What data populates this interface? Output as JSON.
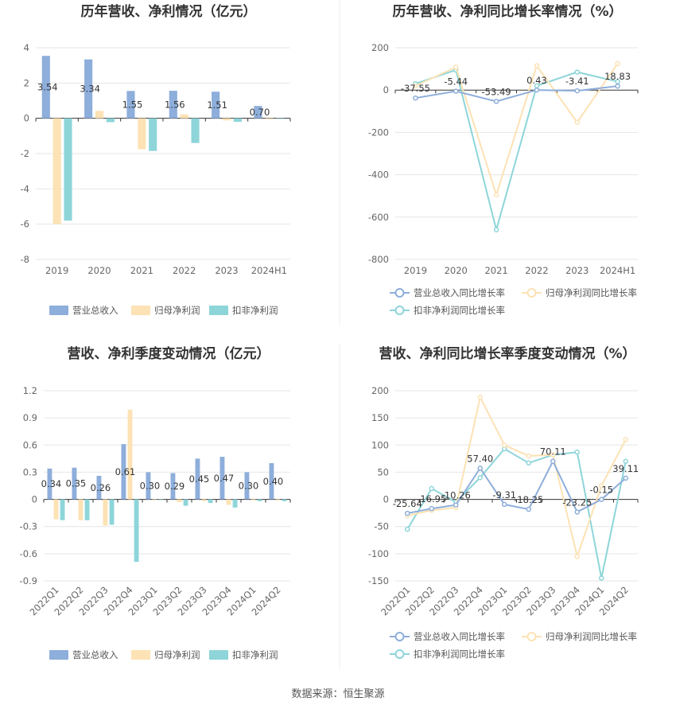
{
  "source": "数据来源：恒生聚源",
  "colors": {
    "revenue": "#8eaedb",
    "net_profit": "#fce2b4",
    "deducted_profit": "#8dd5d9",
    "revenue_line": "#8eaedb",
    "net_profit_line": "#fce2b4",
    "deducted_profit_line": "#8dd5d9",
    "grid": "#e6e6e6",
    "axis": "#333333"
  },
  "chart_data": [
    {
      "id": "annual_amount",
      "type": "bar",
      "title": "历年营收、净利情况（亿元）",
      "categories": [
        "2019",
        "2020",
        "2021",
        "2022",
        "2023",
        "2024H1"
      ],
      "ylim": [
        -8,
        4
      ],
      "yticks": [
        4,
        2,
        0,
        -2,
        -4,
        -6,
        -8
      ],
      "ytick_labels": [
        "4",
        "2",
        "0",
        "-2",
        "-4",
        "-6",
        "-8"
      ],
      "grid": true,
      "legend_position": "bottom",
      "series": [
        {
          "name": "营业总收入",
          "values": [
            3.54,
            3.34,
            1.55,
            1.56,
            1.51,
            0.7
          ],
          "labels": [
            "3.54",
            "3.34",
            "1.55",
            "1.56",
            "1.51",
            "0.70"
          ]
        },
        {
          "name": "归母净利润",
          "values": [
            -6.0,
            0.42,
            -1.75,
            0.22,
            -0.12,
            -0.05
          ]
        },
        {
          "name": "扣非净利润",
          "values": [
            -5.8,
            -0.22,
            -1.85,
            -1.4,
            -0.2,
            -0.03
          ]
        }
      ]
    },
    {
      "id": "annual_growth",
      "type": "line",
      "title": "历年营收、净利同比增长率情况（%）",
      "categories": [
        "2019",
        "2020",
        "2021",
        "2022",
        "2023",
        "2024H1"
      ],
      "ylim": [
        -800,
        200
      ],
      "yticks": [
        200,
        0,
        -200,
        -400,
        -600,
        -800
      ],
      "ytick_labels": [
        "200",
        "0",
        "-200",
        "-400",
        "-600",
        "-800"
      ],
      "grid": true,
      "legend_position": "bottom",
      "series": [
        {
          "name": "营业总收入同比增长率",
          "values": [
            -37.55,
            -5.44,
            -53.49,
            0.43,
            -3.41,
            18.83
          ],
          "labels": [
            "-37.55",
            "-5.44",
            "-53.49",
            "0.43",
            "-3.41",
            "18.83"
          ]
        },
        {
          "name": "归母净利润同比增长率",
          "values": [
            20,
            108,
            -495,
            115,
            -152,
            125
          ]
        },
        {
          "name": "扣非净利润同比增长率",
          "values": [
            30,
            95,
            -660,
            20,
            85,
            40
          ]
        }
      ]
    },
    {
      "id": "quarterly_amount",
      "type": "bar",
      "title": "营收、净利季度变动情况（亿元）",
      "categories": [
        "2022Q1",
        "2022Q2",
        "2022Q3",
        "2022Q4",
        "2023Q1",
        "2023Q2",
        "2023Q3",
        "2023Q4",
        "2024Q1",
        "2024Q2"
      ],
      "ylim": [
        -0.9,
        1.2
      ],
      "yticks": [
        1.2,
        0.9,
        0.6,
        0.3,
        0,
        -0.3,
        -0.6,
        -0.9
      ],
      "ytick_labels": [
        "1.2",
        "0.9",
        "0.6",
        "0.3",
        "0",
        "-0.3",
        "-0.6",
        "-0.9"
      ],
      "grid": true,
      "legend_position": "bottom",
      "series": [
        {
          "name": "营业总收入",
          "values": [
            0.34,
            0.35,
            0.26,
            0.61,
            0.3,
            0.29,
            0.45,
            0.47,
            0.3,
            0.4
          ],
          "labels": [
            "0.34",
            "0.35",
            "0.26",
            "0.61",
            "0.30",
            "0.29",
            "0.45",
            "0.47",
            "0.30",
            "0.40"
          ]
        },
        {
          "name": "归母净利润",
          "values": [
            -0.22,
            -0.23,
            -0.29,
            0.99,
            0.0,
            -0.03,
            -0.02,
            -0.06,
            -0.01,
            -0.01
          ]
        },
        {
          "name": "扣非净利润",
          "values": [
            -0.23,
            -0.23,
            -0.28,
            -0.69,
            0.0,
            -0.07,
            -0.04,
            -0.09,
            -0.02,
            -0.02
          ]
        }
      ]
    },
    {
      "id": "quarterly_growth",
      "type": "line",
      "title": "营收、净利同比增长率季度变动情况（%）",
      "categories": [
        "2022Q1",
        "2022Q2",
        "2022Q3",
        "2022Q4",
        "2023Q1",
        "2023Q2",
        "2023Q3",
        "2023Q4",
        "2024Q1",
        "2024Q2"
      ],
      "ylim": [
        -150,
        200
      ],
      "yticks": [
        200,
        150,
        100,
        50,
        0,
        -50,
        -100,
        -150
      ],
      "ytick_labels": [
        "200",
        "150",
        "100",
        "50",
        "0",
        "-50",
        "-100",
        "-150"
      ],
      "grid": true,
      "legend_position": "bottom",
      "series": [
        {
          "name": "营业总收入同比增长率",
          "values": [
            -25.64,
            -16.95,
            -10.26,
            57.4,
            -9.31,
            -18.25,
            70.11,
            -23.25,
            -0.15,
            39.11
          ],
          "labels": [
            "-25.64",
            "-16.95",
            "-10.26",
            "57.40",
            "-9.31",
            "-18.25",
            "70.11",
            "-23.25",
            "-0.15",
            "39.11"
          ]
        },
        {
          "name": "归母净利润同比增长率",
          "values": [
            -30,
            -20,
            -15,
            188,
            100,
            80,
            82,
            -105,
            25,
            110
          ]
        },
        {
          "name": "扣非净利润同比增长率",
          "values": [
            -55,
            20,
            -5,
            40,
            93,
            67,
            82,
            87,
            -145,
            70
          ]
        }
      ]
    }
  ]
}
